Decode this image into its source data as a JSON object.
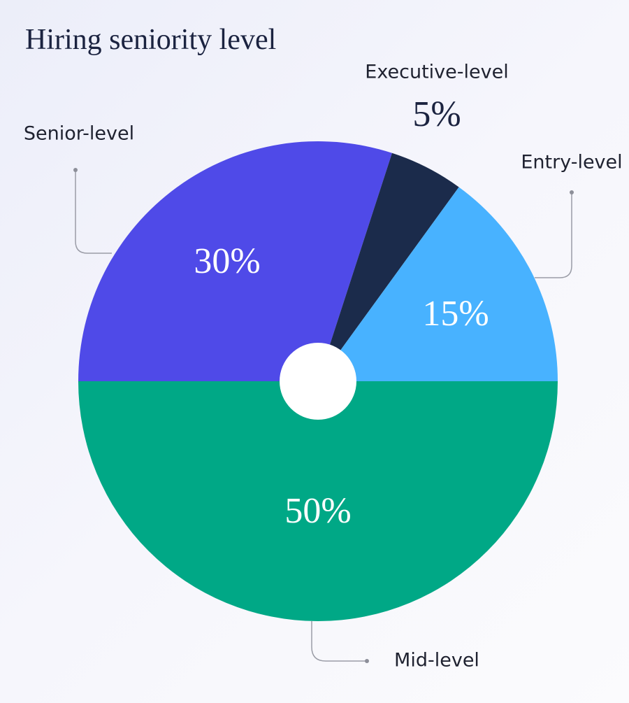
{
  "chart_data": {
    "type": "pie",
    "title": "Hiring seniority level",
    "categories": [
      "Mid-level",
      "Senior-level",
      "Executive-level",
      "Entry-level"
    ],
    "values": [
      50,
      30,
      5,
      15
    ],
    "value_labels": [
      "50%",
      "30%",
      "5%",
      "15%"
    ],
    "colors": [
      "#00a886",
      "#4f4ae8",
      "#1b2b4b",
      "#48b2ff"
    ]
  }
}
